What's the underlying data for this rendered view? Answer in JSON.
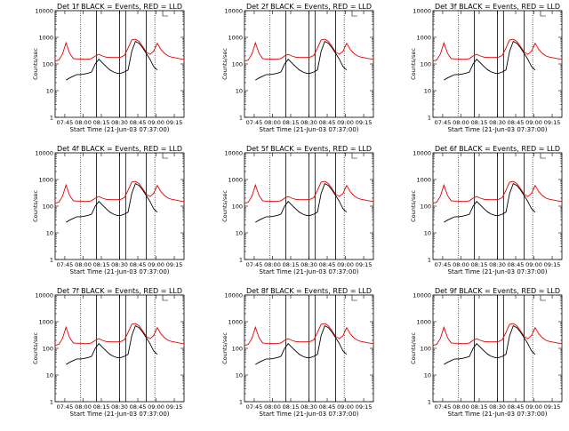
{
  "chart_data": {
    "type": "line",
    "layout": "3x3 grid",
    "y_scale": "log",
    "ylim": [
      1,
      10000
    ],
    "ytick_labels": [
      "1",
      "10",
      "100",
      "1000",
      "10000"
    ],
    "xtick_labels": [
      "07:45",
      "08:00",
      "08:15",
      "08:30",
      "08:45",
      "09:00",
      "09:15"
    ],
    "xtick_minutes": [
      8,
      23,
      38,
      53,
      68,
      83,
      98
    ],
    "x_range_minutes": [
      0,
      106
    ],
    "xlabel": "Start Time (21-Jun-03 07:37:00)",
    "ylabel": "Counts/sec",
    "solid_vlines_minutes": [
      34,
      53,
      58,
      75
    ],
    "dotted_vlines_minutes": [
      21,
      82
    ],
    "colors": {
      "events": "#000000",
      "lld": "#e00000"
    },
    "panels": [
      {
        "title": "Det 1f BLACK = Events, RED = LLD"
      },
      {
        "title": "Det 2f BLACK = Events, RED = LLD"
      },
      {
        "title": "Det 3f BLACK = Events, RED = LLD"
      },
      {
        "title": "Det 4f BLACK = Events, RED = LLD"
      },
      {
        "title": "Det 5f BLACK = Events, RED = LLD"
      },
      {
        "title": "Det 6f BLACK = Events, RED = LLD"
      },
      {
        "title": "Det 7f BLACK = Events, RED = LLD"
      },
      {
        "title": "Det 8f BLACK = Events, RED = LLD"
      },
      {
        "title": "Det 9f BLACK = Events, RED = LLD"
      }
    ],
    "series": [
      {
        "name": "LLD",
        "x": [
          0,
          3,
          6,
          9,
          12,
          15,
          18,
          21,
          24,
          27,
          30,
          33,
          36,
          39,
          42,
          45,
          48,
          51,
          54,
          57,
          60,
          63,
          66,
          69,
          72,
          75,
          78,
          81,
          84,
          87,
          90,
          93,
          96,
          99,
          102,
          106
        ],
        "values": [
          130,
          140,
          230,
          620,
          250,
          160,
          155,
          155,
          150,
          150,
          160,
          200,
          230,
          200,
          180,
          175,
          175,
          175,
          180,
          210,
          400,
          800,
          850,
          700,
          450,
          280,
          230,
          300,
          600,
          350,
          250,
          200,
          180,
          170,
          160,
          150
        ]
      },
      {
        "name": "Events",
        "x": [
          9,
          12,
          15,
          18,
          21,
          24,
          27,
          30,
          33,
          36,
          39,
          42,
          45,
          48,
          51,
          54,
          57,
          60,
          63,
          66,
          69,
          72,
          75,
          78,
          81,
          84
        ],
        "values": [
          25,
          30,
          35,
          40,
          40,
          42,
          45,
          50,
          100,
          150,
          110,
          80,
          60,
          50,
          45,
          45,
          50,
          60,
          300,
          700,
          600,
          400,
          250,
          150,
          80,
          60
        ]
      }
    ]
  }
}
